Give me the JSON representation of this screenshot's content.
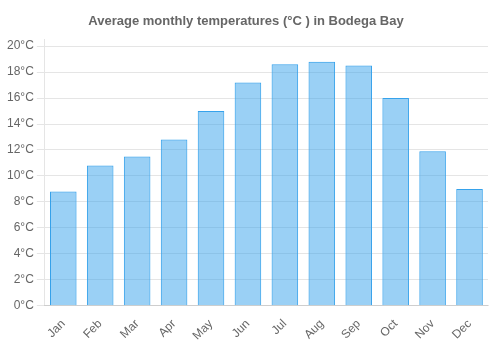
{
  "chart_data": {
    "type": "bar",
    "title": "Average monthly temperatures (°C ) in Bodega Bay",
    "categories": [
      "Jan",
      "Feb",
      "Mar",
      "Apr",
      "May",
      "Jun",
      "Jul",
      "Aug",
      "Sep",
      "Oct",
      "Nov",
      "Dec"
    ],
    "values": [
      8.8,
      10.8,
      11.5,
      12.8,
      15.0,
      17.2,
      18.6,
      18.8,
      18.5,
      16.0,
      11.9,
      9.0
    ],
    "ylim": [
      0,
      20.5
    ],
    "yticks": [
      {
        "value": 0,
        "label": "0°C"
      },
      {
        "value": 2,
        "label": "2°C"
      },
      {
        "value": 4,
        "label": "4°C"
      },
      {
        "value": 6,
        "label": "6°C"
      },
      {
        "value": 8,
        "label": "8°C"
      },
      {
        "value": 10,
        "label": "10°C"
      },
      {
        "value": 12,
        "label": "12°C"
      },
      {
        "value": 14,
        "label": "14°C"
      },
      {
        "value": 16,
        "label": "16°C"
      },
      {
        "value": 18,
        "label": "18°C"
      },
      {
        "value": 20,
        "label": "20°C"
      }
    ],
    "grid": true
  }
}
